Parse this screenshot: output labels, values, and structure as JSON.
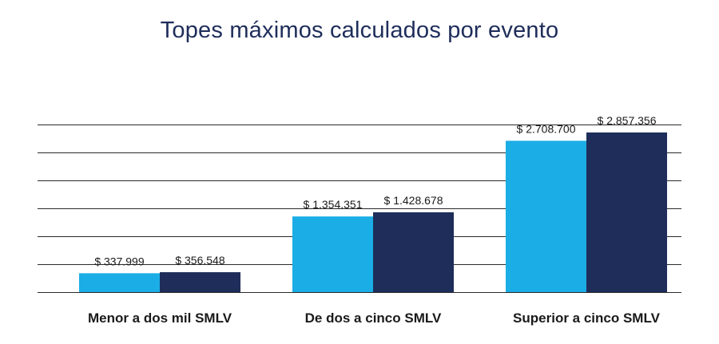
{
  "chart_data": {
    "type": "bar",
    "title": "Topes máximos calculados por evento",
    "xlabel": "",
    "ylabel": "",
    "categories": [
      "Menor a dos mil SMLV",
      "De dos a cinco SMLV",
      "Superior a cinco SMLV"
    ],
    "series": [
      {
        "color": "#1badE5",
        "values": [
          337999,
          1354351,
          2708700
        ],
        "labels": [
          "$ 337.999",
          "$ 1.354.351",
          "$ 2.708.700"
        ]
      },
      {
        "color": "#1e2d5a",
        "values": [
          356548,
          1428678,
          2857356
        ],
        "labels": [
          "$ 356.548",
          "$ 1.428.678",
          "$ 2.857.356"
        ]
      }
    ],
    "ylim": [
      0,
      3000000
    ],
    "grid": true,
    "legend": "none"
  }
}
